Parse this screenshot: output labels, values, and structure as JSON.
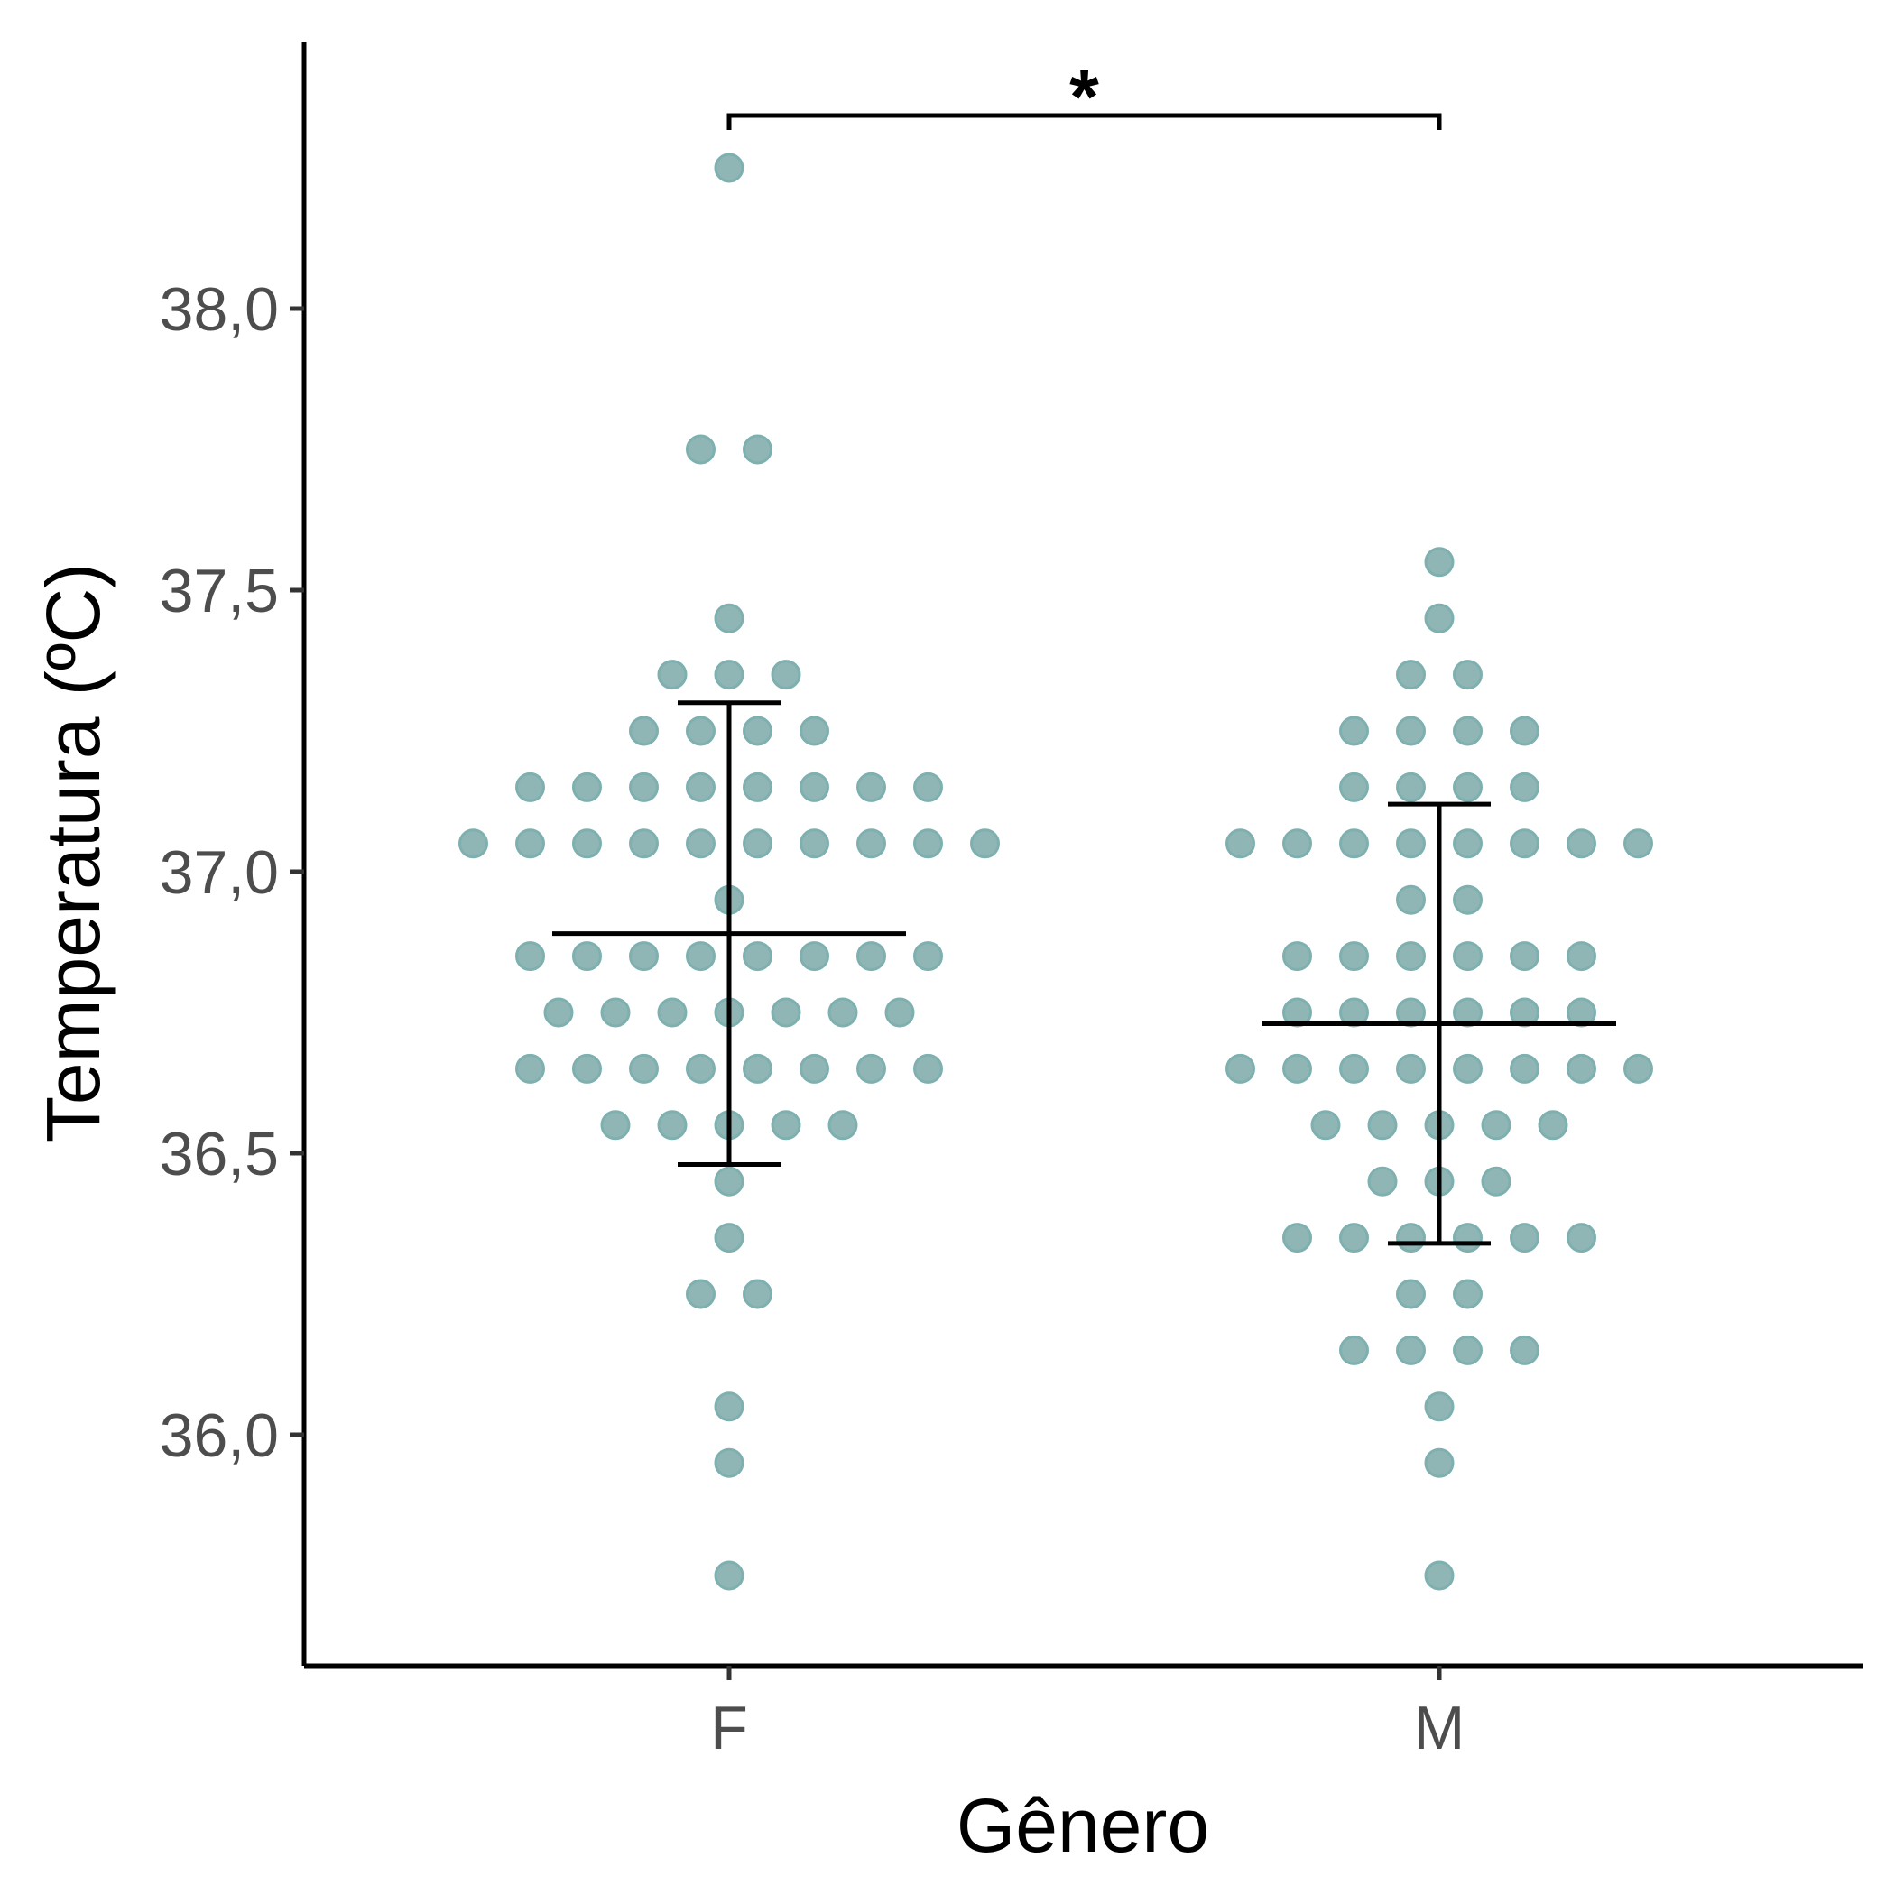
{
  "chart_data": {
    "type": "scatter",
    "subtype": "dotplot",
    "xlabel": "Gênero",
    "ylabel": "Temperatura (ºC)",
    "categories": [
      "F",
      "M"
    ],
    "ylim": [
      35.65,
      38.4
    ],
    "yticks": [
      36.0,
      36.5,
      37.0,
      37.5,
      38.0
    ],
    "ytick_labels": [
      "36,0",
      "36,5",
      "37,0",
      "37,5",
      "38,0"
    ],
    "grid": false,
    "legend": "none",
    "point_color": "#8fb5b5",
    "point_edge_color": "#7fb0b0",
    "series": [
      {
        "category": "F",
        "counts": [
          {
            "y": 38.25,
            "n": 1
          },
          {
            "y": 37.75,
            "n": 2
          },
          {
            "y": 37.45,
            "n": 1
          },
          {
            "y": 37.35,
            "n": 3
          },
          {
            "y": 37.25,
            "n": 4
          },
          {
            "y": 37.15,
            "n": 8
          },
          {
            "y": 37.05,
            "n": 10
          },
          {
            "y": 36.95,
            "n": 1
          },
          {
            "y": 36.85,
            "n": 8
          },
          {
            "y": 36.75,
            "n": 7
          },
          {
            "y": 36.65,
            "n": 8
          },
          {
            "y": 36.55,
            "n": 5
          },
          {
            "y": 36.45,
            "n": 1
          },
          {
            "y": 36.35,
            "n": 1
          },
          {
            "y": 36.25,
            "n": 2
          },
          {
            "y": 36.05,
            "n": 1
          },
          {
            "y": 35.95,
            "n": 1
          },
          {
            "y": 35.75,
            "n": 1
          }
        ],
        "mean": 36.89,
        "error_low": 36.48,
        "error_high": 37.3
      },
      {
        "category": "M",
        "counts": [
          {
            "y": 37.55,
            "n": 1
          },
          {
            "y": 37.45,
            "n": 1
          },
          {
            "y": 37.35,
            "n": 2
          },
          {
            "y": 37.25,
            "n": 4
          },
          {
            "y": 37.15,
            "n": 4
          },
          {
            "y": 37.05,
            "n": 8
          },
          {
            "y": 36.95,
            "n": 2
          },
          {
            "y": 36.85,
            "n": 6
          },
          {
            "y": 36.75,
            "n": 6
          },
          {
            "y": 36.65,
            "n": 8
          },
          {
            "y": 36.55,
            "n": 5
          },
          {
            "y": 36.45,
            "n": 3
          },
          {
            "y": 36.35,
            "n": 6
          },
          {
            "y": 36.25,
            "n": 2
          },
          {
            "y": 36.15,
            "n": 4
          },
          {
            "y": 36.05,
            "n": 1
          },
          {
            "y": 35.95,
            "n": 1
          },
          {
            "y": 35.75,
            "n": 1
          }
        ],
        "mean": 36.73,
        "error_low": 36.34,
        "error_high": 37.12
      }
    ],
    "annotations": [
      {
        "type": "significance-bracket",
        "from": "F",
        "to": "M",
        "label": "*"
      }
    ]
  }
}
